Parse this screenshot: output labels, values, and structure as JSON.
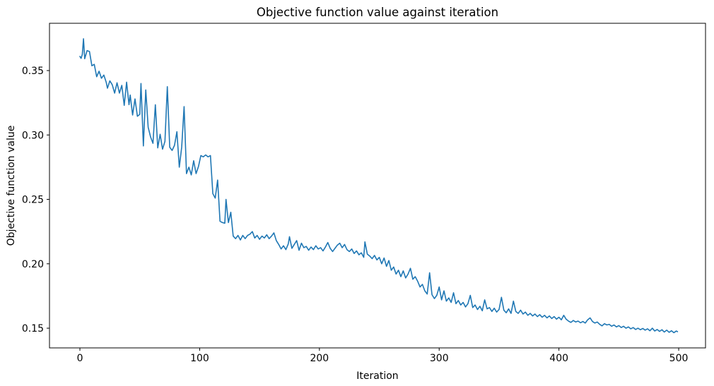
{
  "figure": {
    "background": "#ffffff",
    "text_color": "#000000",
    "spine_color": "#000000"
  },
  "chart_data": {
    "type": "line",
    "title": "Objective function value against iteration",
    "xlabel": "Iteration",
    "ylabel": "Objective function value",
    "xlim": [
      -25.4,
      522.4
    ],
    "ylim": [
      0.1347,
      0.3867
    ],
    "xticks": [
      0,
      100,
      200,
      300,
      400,
      500
    ],
    "xtick_labels": [
      "0",
      "100",
      "200",
      "300",
      "400",
      "500"
    ],
    "yticks": [
      0.15,
      0.2,
      0.25,
      0.3,
      0.35
    ],
    "ytick_labels": [
      "0.15",
      "0.20",
      "0.25",
      "0.30",
      "0.35"
    ],
    "grid": false,
    "legend": null,
    "line_color": "#1f77b4",
    "line_width": 1.6,
    "series": [
      {
        "name": "objective-function-value",
        "points": [
          [
            0,
            0.361
          ],
          [
            1,
            0.3595
          ],
          [
            2,
            0.3625
          ],
          [
            3,
            0.3747
          ],
          [
            4,
            0.3592
          ],
          [
            6,
            0.3655
          ],
          [
            8,
            0.3648
          ],
          [
            10,
            0.3537
          ],
          [
            12,
            0.3548
          ],
          [
            14,
            0.3452
          ],
          [
            16,
            0.3495
          ],
          [
            18,
            0.344
          ],
          [
            20,
            0.3465
          ],
          [
            22,
            0.3408
          ],
          [
            23,
            0.3363
          ],
          [
            25,
            0.342
          ],
          [
            27,
            0.339
          ],
          [
            29,
            0.3325
          ],
          [
            31,
            0.3405
          ],
          [
            33,
            0.3325
          ],
          [
            35,
            0.3385
          ],
          [
            37,
            0.323
          ],
          [
            39,
            0.341
          ],
          [
            41,
            0.3235
          ],
          [
            42,
            0.331
          ],
          [
            44,
            0.3155
          ],
          [
            46,
            0.328
          ],
          [
            48,
            0.3145
          ],
          [
            50,
            0.316
          ],
          [
            51,
            0.34
          ],
          [
            53,
            0.2915
          ],
          [
            55,
            0.335
          ],
          [
            57,
            0.306
          ],
          [
            59,
            0.2985
          ],
          [
            61,
            0.2935
          ],
          [
            63,
            0.3235
          ],
          [
            65,
            0.29
          ],
          [
            67,
            0.3005
          ],
          [
            69,
            0.289
          ],
          [
            71,
            0.295
          ],
          [
            73,
            0.3375
          ],
          [
            75,
            0.2905
          ],
          [
            77,
            0.288
          ],
          [
            79,
            0.292
          ],
          [
            81,
            0.3025
          ],
          [
            83,
            0.275
          ],
          [
            85,
            0.2905
          ],
          [
            87,
            0.322
          ],
          [
            89,
            0.27
          ],
          [
            91,
            0.275
          ],
          [
            93,
            0.269
          ],
          [
            95,
            0.28
          ],
          [
            97,
            0.27
          ],
          [
            99,
            0.2755
          ],
          [
            101,
            0.284
          ],
          [
            103,
            0.283
          ],
          [
            105,
            0.2845
          ],
          [
            107,
            0.283
          ],
          [
            109,
            0.284
          ],
          [
            111,
            0.2545
          ],
          [
            113,
            0.251
          ],
          [
            115,
            0.265
          ],
          [
            117,
            0.233
          ],
          [
            119,
            0.232
          ],
          [
            121,
            0.2315
          ],
          [
            122,
            0.25
          ],
          [
            124,
            0.232
          ],
          [
            126,
            0.24
          ],
          [
            128,
            0.2215
          ],
          [
            130,
            0.2195
          ],
          [
            132,
            0.222
          ],
          [
            134,
            0.2185
          ],
          [
            136,
            0.222
          ],
          [
            138,
            0.2195
          ],
          [
            140,
            0.222
          ],
          [
            142,
            0.223
          ],
          [
            144,
            0.225
          ],
          [
            146,
            0.22
          ],
          [
            148,
            0.222
          ],
          [
            150,
            0.219
          ],
          [
            152,
            0.2215
          ],
          [
            154,
            0.22
          ],
          [
            156,
            0.2225
          ],
          [
            158,
            0.2195
          ],
          [
            160,
            0.2215
          ],
          [
            162,
            0.224
          ],
          [
            164,
            0.218
          ],
          [
            166,
            0.215
          ],
          [
            168,
            0.2115
          ],
          [
            170,
            0.214
          ],
          [
            172,
            0.211
          ],
          [
            174,
            0.2155
          ],
          [
            175,
            0.221
          ],
          [
            177,
            0.212
          ],
          [
            179,
            0.215
          ],
          [
            181,
            0.218
          ],
          [
            183,
            0.2105
          ],
          [
            185,
            0.216
          ],
          [
            187,
            0.2125
          ],
          [
            189,
            0.2135
          ],
          [
            191,
            0.2105
          ],
          [
            193,
            0.213
          ],
          [
            195,
            0.211
          ],
          [
            197,
            0.214
          ],
          [
            199,
            0.2115
          ],
          [
            201,
            0.2125
          ],
          [
            203,
            0.21
          ],
          [
            205,
            0.213
          ],
          [
            207,
            0.2165
          ],
          [
            209,
            0.212
          ],
          [
            211,
            0.2095
          ],
          [
            213,
            0.212
          ],
          [
            215,
            0.2145
          ],
          [
            217,
            0.216
          ],
          [
            219,
            0.2125
          ],
          [
            221,
            0.215
          ],
          [
            223,
            0.211
          ],
          [
            225,
            0.2095
          ],
          [
            227,
            0.2115
          ],
          [
            229,
            0.208
          ],
          [
            231,
            0.21
          ],
          [
            233,
            0.207
          ],
          [
            235,
            0.2085
          ],
          [
            237,
            0.205
          ],
          [
            238,
            0.217
          ],
          [
            240,
            0.2075
          ],
          [
            242,
            0.206
          ],
          [
            244,
            0.204
          ],
          [
            246,
            0.2065
          ],
          [
            248,
            0.203
          ],
          [
            250,
            0.205
          ],
          [
            252,
            0.2
          ],
          [
            254,
            0.2045
          ],
          [
            256,
            0.198
          ],
          [
            258,
            0.2025
          ],
          [
            260,
            0.195
          ],
          [
            262,
            0.1975
          ],
          [
            264,
            0.192
          ],
          [
            266,
            0.195
          ],
          [
            268,
            0.19
          ],
          [
            270,
            0.1945
          ],
          [
            272,
            0.189
          ],
          [
            274,
            0.192
          ],
          [
            276,
            0.1965
          ],
          [
            278,
            0.188
          ],
          [
            280,
            0.19
          ],
          [
            282,
            0.1865
          ],
          [
            284,
            0.182
          ],
          [
            286,
            0.184
          ],
          [
            288,
            0.179
          ],
          [
            290,
            0.1765
          ],
          [
            292,
            0.193
          ],
          [
            294,
            0.176
          ],
          [
            296,
            0.173
          ],
          [
            298,
            0.1755
          ],
          [
            300,
            0.182
          ],
          [
            302,
            0.172
          ],
          [
            304,
            0.179
          ],
          [
            306,
            0.171
          ],
          [
            308,
            0.1735
          ],
          [
            310,
            0.17
          ],
          [
            312,
            0.1775
          ],
          [
            314,
            0.169
          ],
          [
            316,
            0.1715
          ],
          [
            318,
            0.168
          ],
          [
            320,
            0.17
          ],
          [
            322,
            0.1665
          ],
          [
            324,
            0.169
          ],
          [
            326,
            0.1755
          ],
          [
            328,
            0.166
          ],
          [
            330,
            0.168
          ],
          [
            332,
            0.1645
          ],
          [
            334,
            0.167
          ],
          [
            336,
            0.1635
          ],
          [
            338,
            0.172
          ],
          [
            340,
            0.165
          ],
          [
            342,
            0.166
          ],
          [
            344,
            0.163
          ],
          [
            346,
            0.1655
          ],
          [
            348,
            0.1625
          ],
          [
            350,
            0.1645
          ],
          [
            352,
            0.174
          ],
          [
            354,
            0.164
          ],
          [
            356,
            0.162
          ],
          [
            358,
            0.165
          ],
          [
            360,
            0.1615
          ],
          [
            362,
            0.171
          ],
          [
            364,
            0.163
          ],
          [
            366,
            0.1615
          ],
          [
            368,
            0.164
          ],
          [
            370,
            0.161
          ],
          [
            372,
            0.1625
          ],
          [
            374,
            0.16
          ],
          [
            376,
            0.1615
          ],
          [
            378,
            0.1595
          ],
          [
            380,
            0.161
          ],
          [
            382,
            0.159
          ],
          [
            384,
            0.1605
          ],
          [
            386,
            0.1585
          ],
          [
            388,
            0.16
          ],
          [
            390,
            0.158
          ],
          [
            392,
            0.1595
          ],
          [
            394,
            0.1575
          ],
          [
            396,
            0.159
          ],
          [
            398,
            0.157
          ],
          [
            400,
            0.1585
          ],
          [
            402,
            0.1565
          ],
          [
            404,
            0.16
          ],
          [
            406,
            0.157
          ],
          [
            408,
            0.1555
          ],
          [
            410,
            0.1545
          ],
          [
            412,
            0.156
          ],
          [
            414,
            0.1548
          ],
          [
            416,
            0.1555
          ],
          [
            418,
            0.1542
          ],
          [
            420,
            0.1552
          ],
          [
            422,
            0.154
          ],
          [
            424,
            0.1565
          ],
          [
            426,
            0.158
          ],
          [
            428,
            0.1552
          ],
          [
            430,
            0.154
          ],
          [
            432,
            0.1548
          ],
          [
            434,
            0.153
          ],
          [
            436,
            0.1518
          ],
          [
            438,
            0.1535
          ],
          [
            440,
            0.1525
          ],
          [
            442,
            0.153
          ],
          [
            444,
            0.1515
          ],
          [
            446,
            0.1525
          ],
          [
            448,
            0.151
          ],
          [
            450,
            0.152
          ],
          [
            452,
            0.1505
          ],
          [
            454,
            0.1515
          ],
          [
            456,
            0.15
          ],
          [
            458,
            0.151
          ],
          [
            460,
            0.1495
          ],
          [
            462,
            0.1505
          ],
          [
            464,
            0.149
          ],
          [
            466,
            0.15
          ],
          [
            468,
            0.1488
          ],
          [
            470,
            0.1498
          ],
          [
            472,
            0.1485
          ],
          [
            474,
            0.1495
          ],
          [
            476,
            0.148
          ],
          [
            478,
            0.15
          ],
          [
            480,
            0.1478
          ],
          [
            482,
            0.149
          ],
          [
            484,
            0.1475
          ],
          [
            486,
            0.1488
          ],
          [
            488,
            0.147
          ],
          [
            490,
            0.1485
          ],
          [
            492,
            0.1468
          ],
          [
            494,
            0.148
          ],
          [
            496,
            0.1465
          ],
          [
            498,
            0.1478
          ],
          [
            499,
            0.1473
          ]
        ]
      }
    ]
  }
}
